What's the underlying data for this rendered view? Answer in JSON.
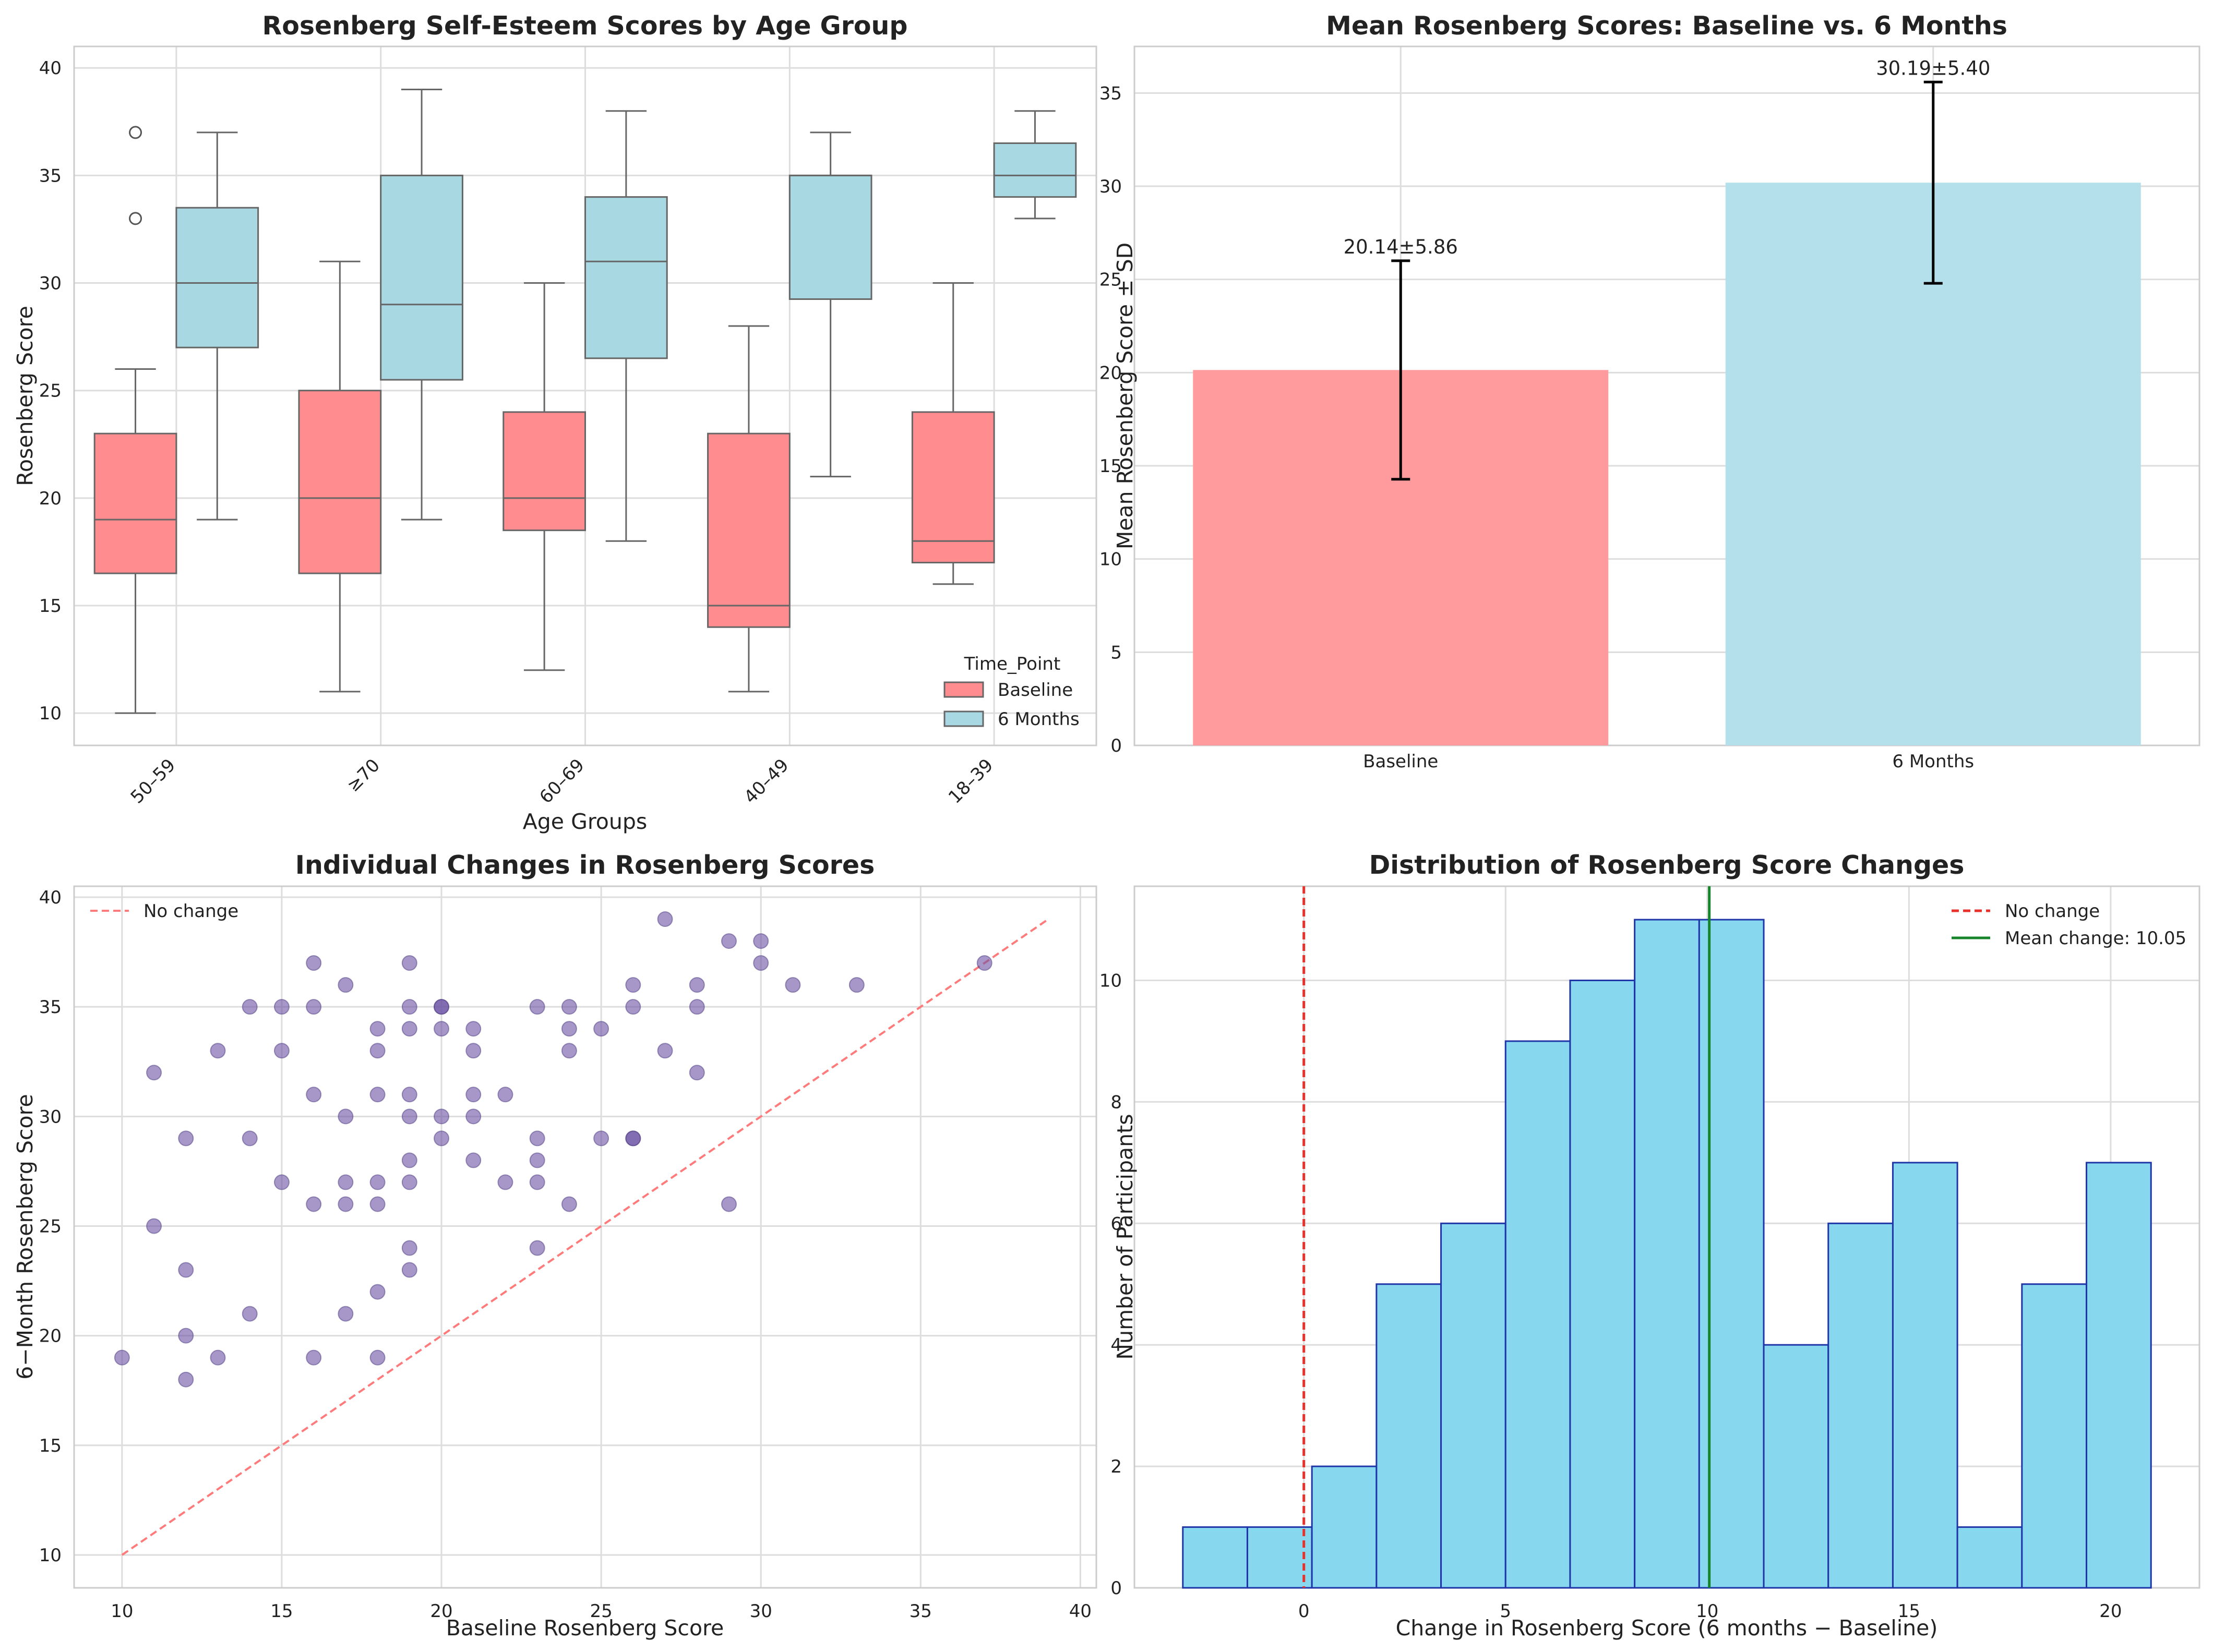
{
  "chart_data": [
    {
      "type": "box",
      "title": "Rosenberg Self-Esteem Scores by Age Group",
      "xlabel": "Age Groups",
      "ylabel": "Rosenberg Score",
      "ylim": [
        8.5,
        41
      ],
      "yticks": [
        10,
        15,
        20,
        25,
        30,
        35,
        40
      ],
      "categories": [
        "50–59",
        "≥70",
        "60–69",
        "40–49",
        "18–39"
      ],
      "legend": {
        "title": "Time_Point",
        "position": "lower-right",
        "entries": [
          {
            "name": "Baseline",
            "color": "#FF8C8F"
          },
          {
            "name": "6 Months",
            "color": "#A8D8E2"
          }
        ]
      },
      "series": [
        {
          "name": "Baseline",
          "color": "#FF8C8F",
          "boxes": [
            {
              "whisker_low": 10,
              "q1": 16.5,
              "median": 19,
              "q3": 23,
              "whisker_high": 26,
              "outliers": [
                33,
                37
              ]
            },
            {
              "whisker_low": 11,
              "q1": 16.5,
              "median": 20,
              "q3": 25,
              "whisker_high": 31,
              "outliers": []
            },
            {
              "whisker_low": 12,
              "q1": 18.5,
              "median": 20,
              "q3": 24,
              "whisker_high": 30,
              "outliers": []
            },
            {
              "whisker_low": 11,
              "q1": 14,
              "median": 15,
              "q3": 23,
              "whisker_high": 28,
              "outliers": []
            },
            {
              "whisker_low": 16,
              "q1": 17,
              "median": 18,
              "q3": 24,
              "whisker_high": 30,
              "outliers": []
            }
          ]
        },
        {
          "name": "6 Months",
          "color": "#A8D8E2",
          "boxes": [
            {
              "whisker_low": 19,
              "q1": 27,
              "median": 30,
              "q3": 33.5,
              "whisker_high": 37,
              "outliers": []
            },
            {
              "whisker_low": 19,
              "q1": 25.5,
              "median": 29,
              "q3": 35,
              "whisker_high": 39,
              "outliers": []
            },
            {
              "whisker_low": 18,
              "q1": 26.5,
              "median": 31,
              "q3": 34,
              "whisker_high": 38,
              "outliers": []
            },
            {
              "whisker_low": 21,
              "q1": 29.25,
              "median": 35,
              "q3": 35,
              "whisker_high": 37,
              "outliers": []
            },
            {
              "whisker_low": 33,
              "q1": 34,
              "median": 35,
              "q3": 36.5,
              "whisker_high": 38,
              "outliers": []
            }
          ]
        }
      ]
    },
    {
      "type": "bar",
      "title": "Mean Rosenberg Scores: Baseline vs. 6 Months",
      "xlabel": "",
      "ylabel": "Mean Rosenberg Score ± SD",
      "ylim": [
        0,
        37.5
      ],
      "yticks": [
        0,
        5,
        10,
        15,
        20,
        25,
        30,
        35
      ],
      "categories": [
        "Baseline",
        "6 Months"
      ],
      "values": [
        20.14,
        30.19
      ],
      "errors": [
        5.86,
        5.4
      ],
      "colors": [
        "#FF9A9D",
        "#B3E0EB"
      ],
      "data_labels": [
        "20.14±5.86",
        "30.19±5.40"
      ]
    },
    {
      "type": "scatter",
      "title": "Individual Changes in Rosenberg Scores",
      "xlabel": "Baseline Rosenberg Score",
      "ylabel": "6−Month Rosenberg Score",
      "xlim": [
        8.5,
        40.5
      ],
      "ylim": [
        8.5,
        40.5
      ],
      "xticks": [
        10,
        15,
        20,
        25,
        30,
        35,
        40
      ],
      "yticks": [
        10,
        15,
        20,
        25,
        30,
        35,
        40
      ],
      "legend": {
        "position": "top-left",
        "entries": [
          {
            "name": "No change",
            "color": "#FF7A7A",
            "style": "dashed"
          }
        ]
      },
      "reference_line": {
        "from": [
          10,
          10
        ],
        "to": [
          39,
          39
        ]
      },
      "point_color": "#6A51A3",
      "x": [
        10,
        11,
        11,
        12,
        12,
        12,
        12,
        13,
        13,
        14,
        14,
        14,
        15,
        15,
        15,
        16,
        16,
        16,
        16,
        16,
        17,
        17,
        17,
        17,
        17,
        18,
        18,
        18,
        18,
        18,
        18,
        18,
        19,
        19,
        19,
        19,
        19,
        19,
        19,
        19,
        19,
        20,
        20,
        20,
        20,
        20,
        21,
        21,
        21,
        21,
        21,
        22,
        22,
        23,
        23,
        23,
        23,
        23,
        24,
        24,
        24,
        24,
        25,
        25,
        26,
        26,
        26,
        26,
        27,
        27,
        28,
        28,
        28,
        29,
        29,
        30,
        30,
        31,
        33,
        37
      ],
      "y": [
        19,
        25,
        32,
        18,
        20,
        23,
        29,
        19,
        33,
        21,
        29,
        35,
        27,
        33,
        35,
        19,
        26,
        31,
        35,
        37,
        21,
        26,
        27,
        30,
        36,
        19,
        22,
        26,
        27,
        31,
        33,
        34,
        23,
        24,
        27,
        28,
        30,
        31,
        34,
        37,
        35,
        29,
        30,
        34,
        35,
        35,
        28,
        30,
        31,
        33,
        34,
        27,
        31,
        24,
        27,
        28,
        29,
        35,
        26,
        33,
        34,
        35,
        29,
        34,
        29,
        35,
        36,
        29,
        33,
        39,
        32,
        35,
        36,
        26,
        38,
        37,
        38,
        36,
        36,
        37
      ]
    },
    {
      "type": "histogram",
      "title": "Distribution of Rosenberg Score Changes",
      "xlabel": "Change in Rosenberg Score (6 months − Baseline)",
      "ylabel": "Number of Participants",
      "xlim": [
        -4.2,
        22.2
      ],
      "ylim": [
        0,
        11.55
      ],
      "xticks": [
        0,
        5,
        10,
        15,
        20
      ],
      "yticks": [
        0,
        2,
        4,
        6,
        8,
        10
      ],
      "bins": [
        -3,
        -1.4,
        0.2,
        1.8,
        3.4,
        5,
        6.6,
        8.2,
        9.8,
        11.4,
        13,
        14.6,
        16.2,
        17.8,
        19.4,
        21
      ],
      "counts": [
        1,
        1,
        2,
        5,
        6,
        9,
        10,
        11,
        11,
        4,
        6,
        7,
        1,
        5,
        7
      ],
      "fill_color": "#87D7EE",
      "edge_color": "#1F35A8",
      "reference_lines": [
        {
          "name": "No change",
          "x": 0,
          "color": "#E8312B",
          "style": "dashed"
        },
        {
          "name": "Mean change: 10.05",
          "x": 10.05,
          "color": "#14852A",
          "style": "solid"
        }
      ],
      "legend": {
        "position": "top-right"
      }
    }
  ]
}
